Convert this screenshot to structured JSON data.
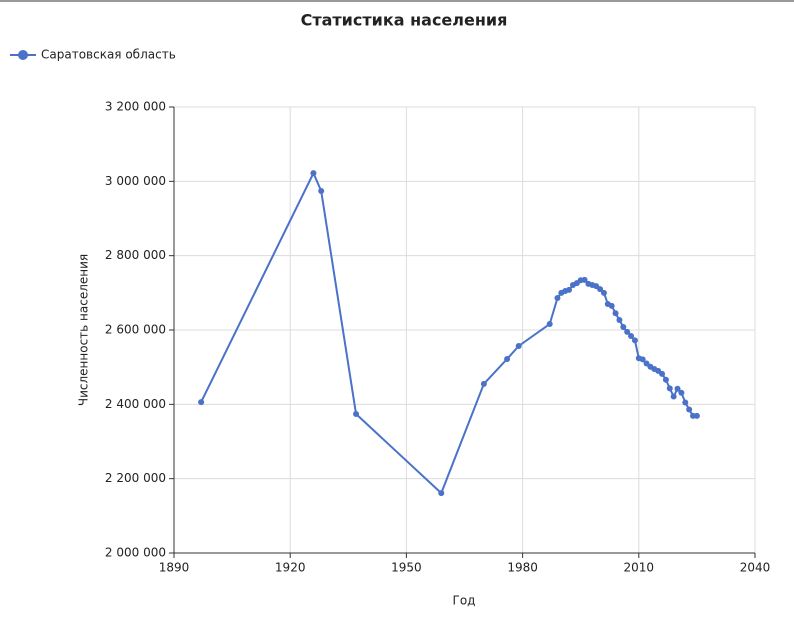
{
  "chart_data": {
    "type": "line",
    "title": "Статистика населения",
    "xlabel": "Год",
    "ylabel": "Численность населения",
    "legend": "top-left",
    "grid": true,
    "x": [
      1897,
      1926,
      1928,
      1937,
      1959,
      1970,
      1976,
      1979,
      1987,
      1989,
      1990,
      1991,
      1992,
      1993,
      1994,
      1995,
      1996,
      1997,
      1998,
      1999,
      2000,
      2001,
      2002,
      2003,
      2004,
      2005,
      2006,
      2007,
      2008,
      2009,
      2010,
      2011,
      2012,
      2013,
      2014,
      2015,
      2016,
      2017,
      2018,
      2019,
      2020,
      2021,
      2022,
      2023,
      2024,
      2025
    ],
    "series": [
      {
        "name": "Саратовская область",
        "color": "#4a72c8",
        "values": [
          2406000,
          3022000,
          2974000,
          2374000,
          2161000,
          2455000,
          2522000,
          2557000,
          2616000,
          2686000,
          2700000,
          2705000,
          2708000,
          2721000,
          2726000,
          2734000,
          2735000,
          2724000,
          2721000,
          2718000,
          2710000,
          2700000,
          2670000,
          2665000,
          2645000,
          2627000,
          2608000,
          2595000,
          2584000,
          2572000,
          2524000,
          2521000,
          2510000,
          2501000,
          2495000,
          2490000,
          2482000,
          2466000,
          2443000,
          2421000,
          2442000,
          2431000,
          2405000,
          2386000,
          2369000,
          2369000
        ]
      }
    ],
    "xlim": [
      1890,
      2040
    ],
    "xticks": [
      1890,
      1920,
      1950,
      1980,
      2010,
      2040
    ],
    "ylim": [
      2000000,
      3200000
    ],
    "yticks": [
      {
        "value": 2000000,
        "label": "2 000 000"
      },
      {
        "value": 2200000,
        "label": "2 200 000"
      },
      {
        "value": 2400000,
        "label": "2 400 000"
      },
      {
        "value": 2600000,
        "label": "2 600 000"
      },
      {
        "value": 2800000,
        "label": "2 800 000"
      },
      {
        "value": 3000000,
        "label": "3 000 000"
      },
      {
        "value": 3200000,
        "label": "3 200 000"
      }
    ]
  }
}
